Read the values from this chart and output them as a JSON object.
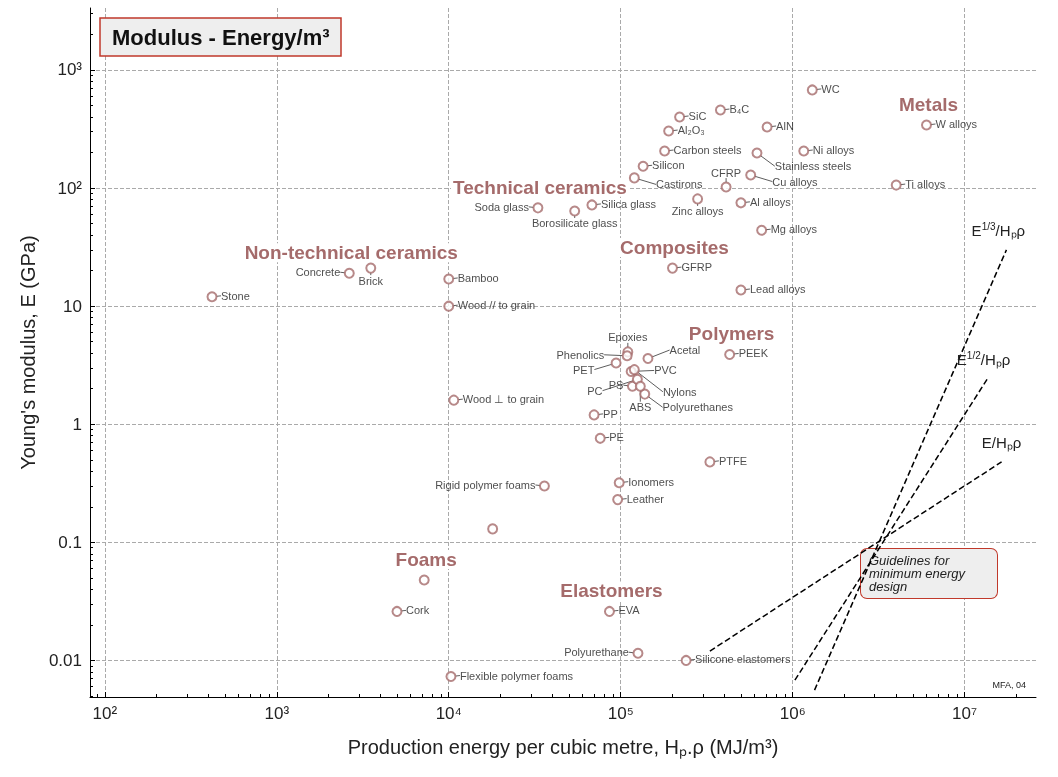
{
  "chart_data": {
    "type": "scatter",
    "title": "Modulus - Energy/m³",
    "xlabel": "Production energy per cubic metre, Hₚ.ρ (MJ/m³)",
    "ylabel": "Young's modulus, E (GPa)",
    "log": "xy",
    "grid": true,
    "marker": "circle",
    "legend": false,
    "xlim": [
      82,
      26000000
    ],
    "ylim": [
      0.0049,
      3350
    ],
    "xticks": [
      {
        "value": 100,
        "label": "10²"
      },
      {
        "value": 1000,
        "label": "10³"
      },
      {
        "value": 10000,
        "label": "10⁴"
      },
      {
        "value": 100000,
        "label": "10⁵"
      },
      {
        "value": 1000000,
        "label": "10⁶"
      },
      {
        "value": 10000000,
        "label": "10⁷"
      }
    ],
    "yticks": [
      0.01,
      0.1,
      1,
      10,
      {
        "value": 100,
        "label": "10²"
      },
      {
        "value": 1000,
        "label": "10³"
      }
    ],
    "series": [
      {
        "name": "Non-technical ceramics",
        "color": "#a56b6b",
        "x": [
          2640,
          420,
          3520
        ],
        "values": [
          19,
          12,
          21
        ],
        "value_labels": [
          "Concrete",
          "Stone",
          "Brick"
        ]
      },
      {
        "color": "#a56b6b",
        "x": [
          10000,
          10000,
          10700
        ],
        "values": [
          17,
          10,
          1.6
        ],
        "value_labels": [
          "Bamboo",
          "Wood // to grain",
          "Wood ⊥ to grain"
        ]
      },
      {
        "name": "Technical ceramics",
        "color": "#a56b6b",
        "x": [
          33000,
          54000,
          68000,
          135000,
          190000,
          220000,
          380000,
          710000,
          1300000
        ],
        "values": [
          68,
          64,
          72,
          153,
          304,
          400,
          458,
          329,
          678
        ],
        "value_labels": [
          "Soda glass",
          "Borosilicate glass",
          "Silica glass",
          "Silicon",
          "Al₂O₃",
          "SiC",
          "B₄C",
          "AlN",
          "WC"
        ]
      },
      {
        "name": "Metals",
        "color": "#a56b6b",
        "x": [
          6000000,
          280000,
          180000,
          620000,
          1160000,
          120000,
          570000,
          4000000,
          500000,
          660000,
          500000
        ],
        "values": [
          342,
          81,
          206,
          198,
          206,
          122,
          129,
          106,
          75,
          44,
          13.7
        ],
        "value_labels": [
          "W alloys",
          "Zinc alloys",
          "Carbon steels",
          "Stainless steels",
          "Ni alloys",
          "Castirons",
          "Cu alloys",
          "Ti alloys",
          "Al alloys",
          "Mg alloys",
          "Lead alloys"
        ]
      },
      {
        "name": "Composites",
        "color": "#a56b6b",
        "x": [
          200000,
          410000
        ],
        "values": [
          21,
          102
        ],
        "value_labels": [
          "GFRP",
          "CFRP"
        ]
      },
      {
        "name": "Polymers",
        "color": "#a56b6b",
        "x": [
          430000,
          110000,
          109000,
          94000,
          115000,
          117000,
          70000,
          76000,
          144000,
          120000,
          125000,
          138000,
          130000,
          330000,
          98000,
          96000
        ],
        "values": [
          3.9,
          4.1,
          3.8,
          3.3,
          2.8,
          2.1,
          1.2,
          0.76,
          3.6,
          2.9,
          2.4,
          1.8,
          2.1,
          0.48,
          0.32,
          0.23
        ],
        "value_labels": [
          "PEEK",
          "Epoxies",
          "Phenolics",
          "PET",
          "PVC",
          "PS",
          "PP",
          "PE",
          "Acetal",
          "Nylons",
          "PC",
          "Polyurethanes",
          "ABS",
          "PTFE",
          "Ionomers",
          "Leather"
        ]
      },
      {
        "name": "Foams",
        "color": "#a56b6b",
        "x": [
          7200,
          36000,
          18000,
          5000,
          10300
        ],
        "values": [
          0.048,
          0.3,
          0.13,
          0.026,
          0.0073
        ],
        "value_labels": [
          null,
          "Rigid polymer foams",
          null,
          "Cork",
          "Flexible polymer foams"
        ]
      },
      {
        "name": "Elastomers",
        "color": "#a56b6b",
        "x": [
          86000,
          126000,
          240000
        ],
        "values": [
          0.026,
          0.0115,
          0.01
        ],
        "value_labels": [
          "EVA",
          "Polyurethane",
          "Silicone elastomers"
        ]
      },
      {
        "name": "E$^{1/3}$/Hₚρ",
        "type": "line",
        "marker": "none",
        "line_style": "dashed",
        "color": "#000000",
        "x": [
          1340000,
          17500000
        ],
        "values": [
          0.0056,
          30
        ]
      },
      {
        "name": "E$^{1/2}$/Hₚρ",
        "type": "line",
        "marker": "none",
        "line_style": "dashed",
        "color": "#000000",
        "x": [
          1030000,
          13500000
        ],
        "values": [
          0.0068,
          2.4
        ]
      },
      {
        "name": "E/Hₚρ",
        "type": "line",
        "marker": "none",
        "line_style": "dashed",
        "color": "#000000",
        "x": [
          330000,
          16400000
        ],
        "values": [
          0.012,
          0.48
        ]
      }
    ],
    "annotations": [
      "Guidelines for minimum energy design",
      "MFA, 04"
    ]
  }
}
